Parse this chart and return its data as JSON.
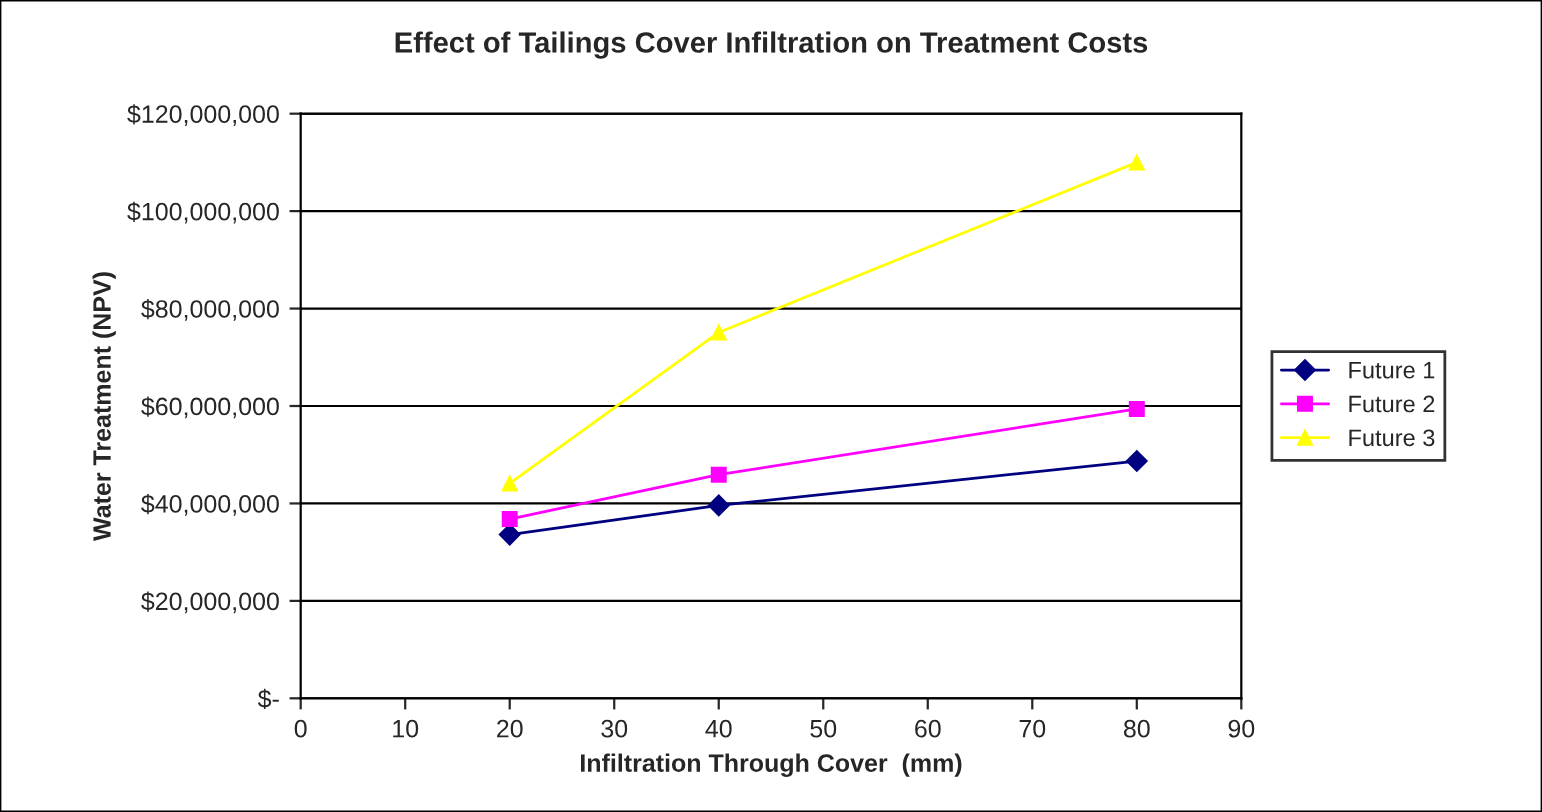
{
  "chart_data": {
    "type": "line",
    "title": "Effect of Tailings Cover Infiltration on Treatment Costs",
    "xlabel": "Infiltration Through Cover  (mm)",
    "ylabel": "Water Treatment (NPV)",
    "x": [
      20,
      40,
      80
    ],
    "series": [
      {
        "name": "Future 1",
        "color": "#000080",
        "marker": "diamond",
        "values": [
          33600000,
          39600000,
          48700000
        ]
      },
      {
        "name": "Future 2",
        "color": "#ff00ff",
        "marker": "square",
        "values": [
          36800000,
          45900000,
          59400000
        ]
      },
      {
        "name": "Future 3",
        "color": "#ffff00",
        "marker": "triangle",
        "values": [
          44100000,
          75100000,
          110000000
        ]
      }
    ],
    "xlim": [
      0,
      90
    ],
    "xticks": [
      0,
      10,
      20,
      30,
      40,
      50,
      60,
      70,
      80,
      90
    ],
    "ylim": [
      0,
      120000000
    ],
    "yticks": [
      {
        "value": 0,
        "label": "$-"
      },
      {
        "value": 20000000,
        "label": "$20,000,000"
      },
      {
        "value": 40000000,
        "label": "$40,000,000"
      },
      {
        "value": 60000000,
        "label": "$60,000,000"
      },
      {
        "value": 80000000,
        "label": "$80,000,000"
      },
      {
        "value": 100000000,
        "label": "$100,000,000"
      },
      {
        "value": 120000000,
        "label": "$120,000,000"
      }
    ],
    "grid": "y",
    "legend": "right",
    "line_style": "solid"
  }
}
